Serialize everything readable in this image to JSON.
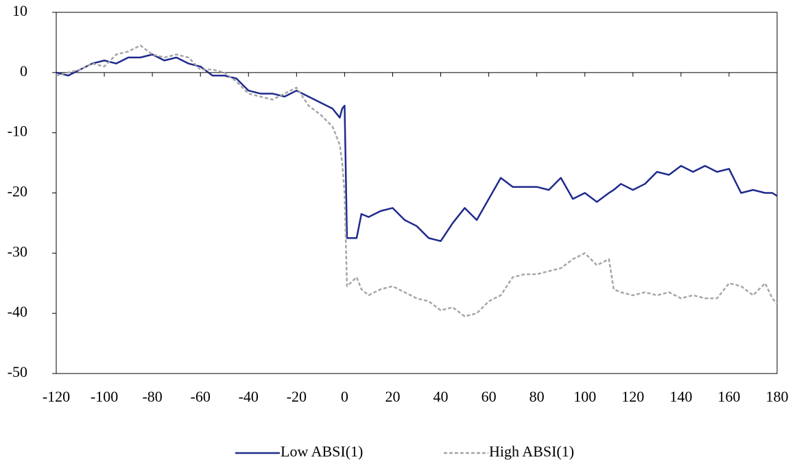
{
  "chart_data": {
    "type": "line",
    "x": [
      -120,
      -115,
      -110,
      -105,
      -100,
      -95,
      -90,
      -85,
      -80,
      -75,
      -70,
      -65,
      -60,
      -55,
      -50,
      -45,
      -40,
      -35,
      -30,
      -25,
      -20,
      -15,
      -10,
      -5,
      -2,
      -1,
      0,
      1,
      5,
      7,
      10,
      15,
      20,
      25,
      30,
      35,
      40,
      45,
      50,
      55,
      60,
      65,
      70,
      75,
      80,
      85,
      90,
      95,
      100,
      105,
      110,
      112,
      115,
      120,
      125,
      130,
      135,
      140,
      145,
      150,
      155,
      160,
      165,
      170,
      175,
      178,
      180
    ],
    "series": [
      {
        "name": "Low ABSI(1)",
        "color": "#1f2a8c",
        "line_style": "solid",
        "values": [
          0,
          -0.5,
          0.5,
          1.5,
          2,
          1.5,
          2.5,
          2.5,
          3,
          2,
          2.5,
          1.5,
          1,
          -0.5,
          -0.5,
          -1,
          -3,
          -3.5,
          -3.5,
          -4,
          -3,
          -4,
          -5,
          -6,
          -7.5,
          -6,
          -5.5,
          -27.5,
          -27.5,
          -23.5,
          -24,
          -23,
          -22.5,
          -24.5,
          -25.5,
          -27.5,
          -28,
          -25,
          -22.5,
          -24.5,
          -21,
          -17.5,
          -19,
          -19,
          -19,
          -19.5,
          -17.5,
          -21,
          -20,
          -21.5,
          -20,
          -19.5,
          -18.5,
          -19.5,
          -18.5,
          -16.5,
          -17,
          -15.5,
          -16.5,
          -15.5,
          -16.5,
          -16,
          -20,
          -19.5,
          -20,
          -20,
          -20.5
        ]
      },
      {
        "name": "High ABSI(1)",
        "color": "#a6a6a6",
        "line_style": "dashed",
        "values": [
          -0.5,
          0,
          0.5,
          1.5,
          1,
          3,
          3.5,
          4.5,
          3,
          2.5,
          3,
          2.5,
          0.5,
          0.5,
          0,
          -1.5,
          -3.5,
          -4,
          -4.5,
          -3.5,
          -2.5,
          -5.5,
          -7,
          -9,
          -12,
          -15,
          -20,
          -35.5,
          -34,
          -36,
          -37,
          -36,
          -35.5,
          -36.5,
          -37.5,
          -38,
          -39.5,
          -39,
          -40.5,
          -40,
          -38,
          -37,
          -34,
          -33.5,
          -33.5,
          -33,
          -32.5,
          -31,
          -30,
          -32,
          -31,
          -36,
          -36.5,
          -37,
          -36.5,
          -37,
          -36.5,
          -37.5,
          -37,
          -37.5,
          -37.5,
          -35,
          -35.5,
          -37,
          -35,
          -37.5,
          -38.5
        ]
      }
    ],
    "xlim": [
      -120,
      180
    ],
    "xticks": [
      -120,
      -100,
      -80,
      -60,
      -40,
      -20,
      0,
      20,
      40,
      60,
      80,
      100,
      120,
      140,
      160,
      180
    ],
    "ylim": [
      -50,
      10
    ],
    "yticks": [
      -50,
      -40,
      -30,
      -20,
      -10,
      0,
      10
    ],
    "legend": "bottom",
    "grid": false
  }
}
